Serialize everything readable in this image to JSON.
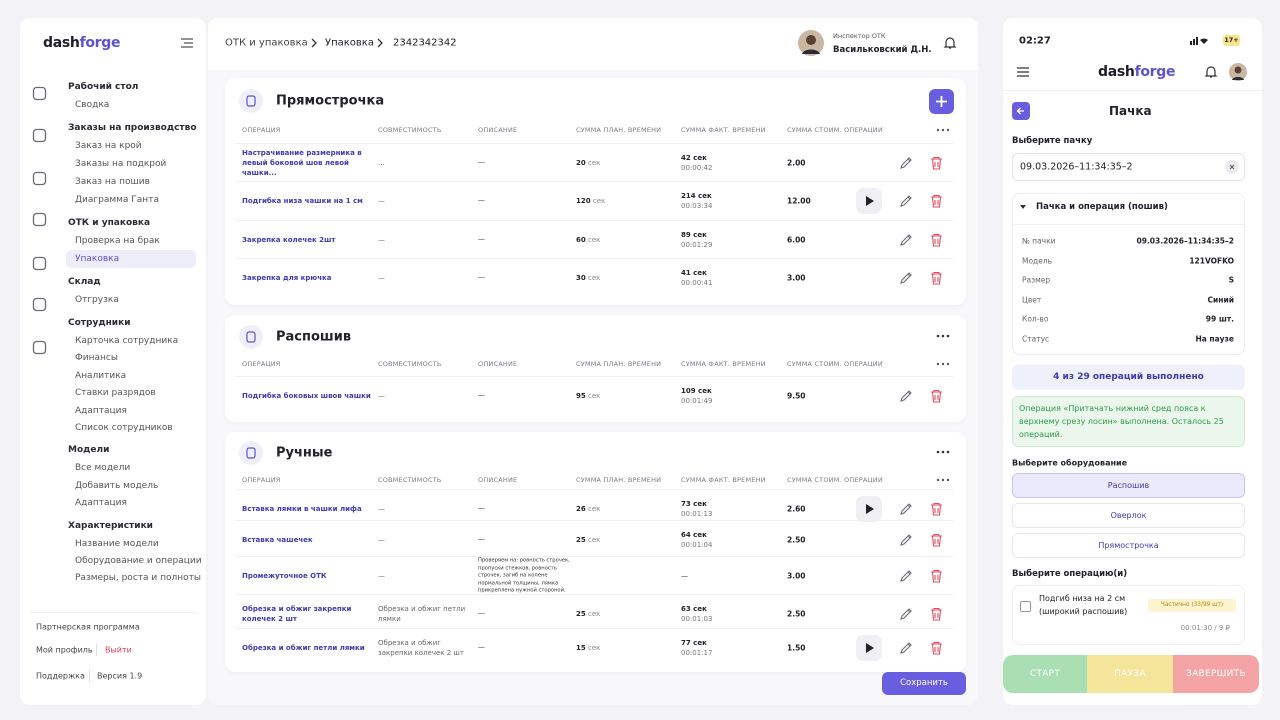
{
  "sidebar": {
    "logo": [
      "dash",
      "forge"
    ],
    "groups": [
      {
        "title": "Рабочий стол",
        "items": [
          "Сводка"
        ]
      },
      {
        "title": "Заказы на производство",
        "items": [
          "Заказ на крой",
          "Заказы на подкрой",
          "Заказ на пошив",
          "Диаграмма Ганта"
        ]
      },
      {
        "title": "ОТК и упаковка",
        "items": [
          "Проверка на брак",
          "Упаковка"
        ]
      },
      {
        "title": "Склад",
        "items": [
          "Отгрузка"
        ]
      },
      {
        "title": "Сотрудники",
        "items": [
          "Карточка сотрудника",
          "Финансы",
          "Аналитика",
          "Ставки разрядов",
          "Адаптация",
          "Список сотрудников"
        ]
      },
      {
        "title": "Модели",
        "items": [
          "Все модели",
          "Добавить модель",
          "Адаптация"
        ]
      },
      {
        "title": "Характеристики",
        "items": [
          "Название модели",
          "Оборудование и операции",
          "Размеры, роста и полноты"
        ]
      }
    ],
    "footer": {
      "partner": "Партнерская программа",
      "profile": "Мой профиль",
      "logout": "Выйти",
      "support": "Поддержка",
      "version": "Версия 1.9"
    }
  },
  "header": {
    "breadcrumbs": [
      "ОТК и упаковка",
      "Упаковка",
      "2342342342"
    ],
    "user_role": "Инспектор ОТК",
    "user_name": "Васильковский Д.Н."
  },
  "table": {
    "columns": [
      "ОПЕРАЦИЯ",
      "СОВМЕСТИМОСТЬ",
      "ОПИСАНИЕ",
      "СУММА ПЛАН. ВРЕМЕНИ",
      "СУММА ФАКТ. ВРЕМЕНИ",
      "СУММА СТОИМ. ОПЕРАЦИИ"
    ],
    "unit": "сек",
    "save": "Сохранить"
  },
  "sections": [
    {
      "title": "Прямострочка",
      "rows": [
        {
          "operation": "Настрачивание размерника в левый боковой шов левой чашки...",
          "compat": "...",
          "description": "—",
          "plan": "20",
          "fact": "42 сек",
          "fact_time": "00:00:42",
          "cost": "2.00",
          "play": false
        },
        {
          "operation": "Подгибка низа чашки на 1 см",
          "compat": "—",
          "description": "—",
          "plan": "120",
          "fact": "214 сек",
          "fact_time": "00:03:34",
          "cost": "12.00",
          "play": true
        },
        {
          "operation": "Закрепка колечек 2шт",
          "compat": "—",
          "description": "—",
          "plan": "60",
          "fact": "89 сек",
          "fact_time": "00:01:29",
          "cost": "6.00",
          "play": false
        },
        {
          "operation": "Закрепка для крючка",
          "compat": "—",
          "description": "—",
          "plan": "30",
          "fact": "41 сек",
          "fact_time": "00:00:41",
          "cost": "3.00",
          "play": false
        }
      ]
    },
    {
      "title": "Распошив",
      "rows": [
        {
          "operation": "Подгибка боковых швов чашки",
          "compat": "—",
          "description": "—",
          "plan": "95",
          "fact": "109 сек",
          "fact_time": "00:01:49",
          "cost": "9.50",
          "play": false
        }
      ]
    },
    {
      "title": "Ручные",
      "rows": [
        {
          "operation": "Вставка лямки в чашки лифа",
          "compat": "—",
          "description": "—",
          "plan": "26",
          "fact": "73 сек",
          "fact_time": "00:01:13",
          "cost": "2.60",
          "play": true
        },
        {
          "operation": "Вставка чашечек",
          "compat": "—",
          "description": "—",
          "plan": "25",
          "fact": "64 сек",
          "fact_time": "00:01:04",
          "cost": "2.50",
          "play": false
        },
        {
          "operation": "Промежуточное ОТК",
          "compat": "—",
          "description": "Проверяем на: ровность строчек, пропуски стежков, ровность строчек, загиб на колене нормальной толщины, лямка прикреплена нужной стороной.",
          "plan": null,
          "fact": "—",
          "fact_time": null,
          "cost": "3.00",
          "play": false
        },
        {
          "operation": "Обрезка и обжиг закрепки колечек 2 шт",
          "compat": "Обрезка и обжиг петли лямки",
          "description": "—",
          "plan": "25",
          "fact": "63 сек",
          "fact_time": "00:01:03",
          "cost": "2.50",
          "play": false
        },
        {
          "operation": "Обрезка и обжиг петли лямки",
          "compat": "Обрезка и обжиг закрепки колечек 2 шт",
          "description": "—",
          "plan": "15",
          "fact": "77 сек",
          "fact_time": "00:01:17",
          "cost": "1.50",
          "play": true
        }
      ]
    }
  ],
  "mobile": {
    "time": "02:27",
    "battery": "17+",
    "title": "Пачка",
    "batch_label": "Выберите пачку",
    "batch_value": "09.03.2026–11:34:35–2",
    "accordion_title": "Пачка и операция (пошив)",
    "fields": [
      {
        "label": "№ пачки",
        "value": "09.03.2026–11:34:35–2"
      },
      {
        "label": "Модель",
        "value": "121VOFKO"
      },
      {
        "label": "Размер",
        "value": "S"
      },
      {
        "label": "Цвет",
        "value": "Синий"
      },
      {
        "label": "Кол-во",
        "value": "99 шт."
      },
      {
        "label": "Статус",
        "value": "На паузе"
      }
    ],
    "progress": "4 из 29 операций выполнено",
    "alert": "Операция «Притачать нижний сред пояса к верхнему срезу лосин» выполнена. Осталось 25 операций.",
    "equipment_label": "Выберите оборудование",
    "equipment": [
      "Распошив",
      "Оверлок",
      "Прямострочка"
    ],
    "operation_label": "Выберите операцию(и)",
    "operation": {
      "name": "Подгиб низа на 2 см (широкий распошив)",
      "badge": "Частично (33/99 шт)",
      "meta": "00:01:30 / 9 ₽"
    },
    "actions": [
      "СТАРТ",
      "ПАУЗА",
      "ЗАВЕРШИТЬ"
    ]
  }
}
